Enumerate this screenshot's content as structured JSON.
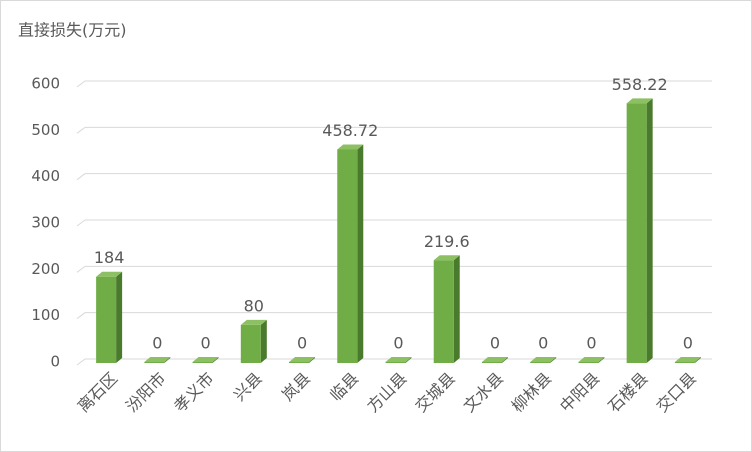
{
  "chart_data": {
    "type": "bar3d",
    "title": "直接损失(万元)",
    "categories": [
      "离石区",
      "汾阳市",
      "孝义市",
      "兴县",
      "岚县",
      "临县",
      "方山县",
      "交城县",
      "文水县",
      "柳林县",
      "中阳县",
      "石楼县",
      "交口县"
    ],
    "values": [
      184,
      0,
      0,
      80,
      0,
      458.72,
      0,
      219.6,
      0,
      0,
      0,
      558.22,
      0
    ],
    "color": "#70ad47",
    "ylim": [
      0,
      600
    ],
    "yticks": [
      0,
      100,
      200,
      300,
      400,
      500,
      600
    ],
    "grid": true
  }
}
